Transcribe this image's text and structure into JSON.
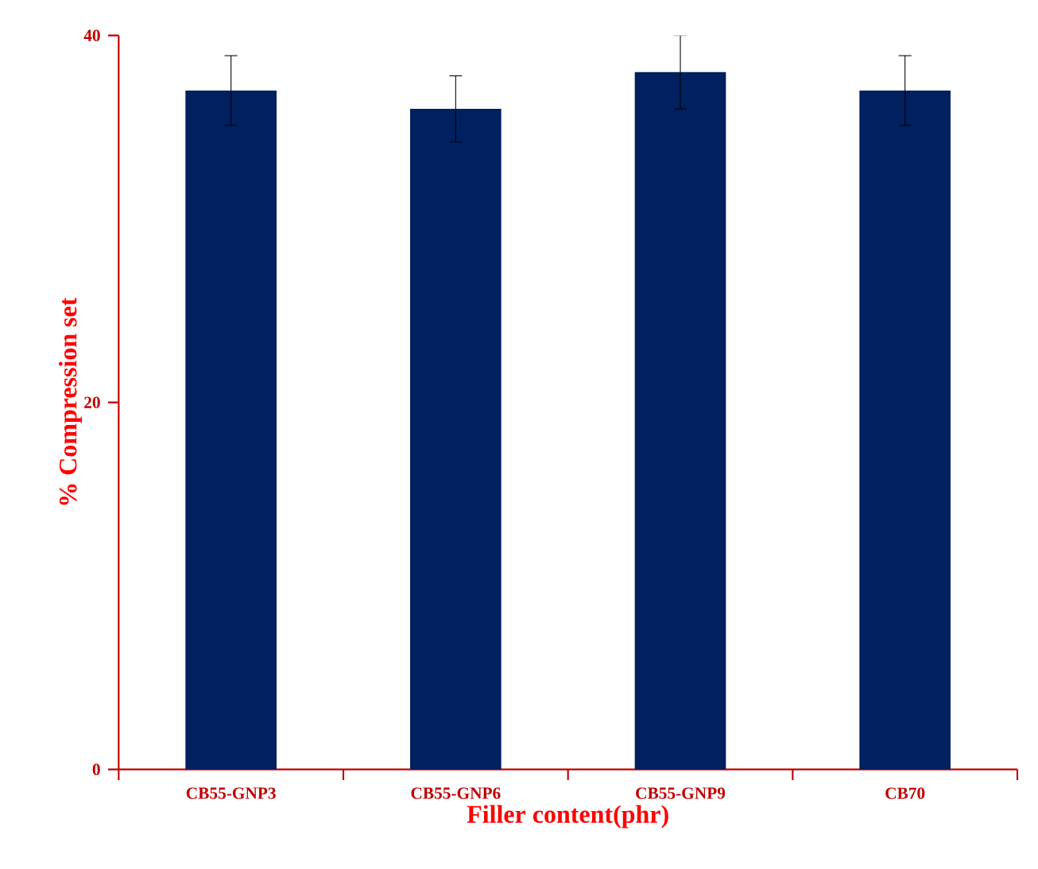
{
  "chart_data": {
    "type": "bar",
    "xlabel": "Filler  content(phr)",
    "ylabel": "% Compression  set",
    "categories": [
      "CB55-GNP3",
      "CB55-GNP6",
      "CB55-GNP9",
      "CB70"
    ],
    "values": [
      37,
      36,
      38,
      37
    ],
    "errors": [
      1.9,
      1.8,
      2,
      1.9
    ],
    "color": "#002060",
    "ylim": [
      0,
      40
    ],
    "yticks": [
      0,
      20,
      40
    ],
    "grid": false
  }
}
